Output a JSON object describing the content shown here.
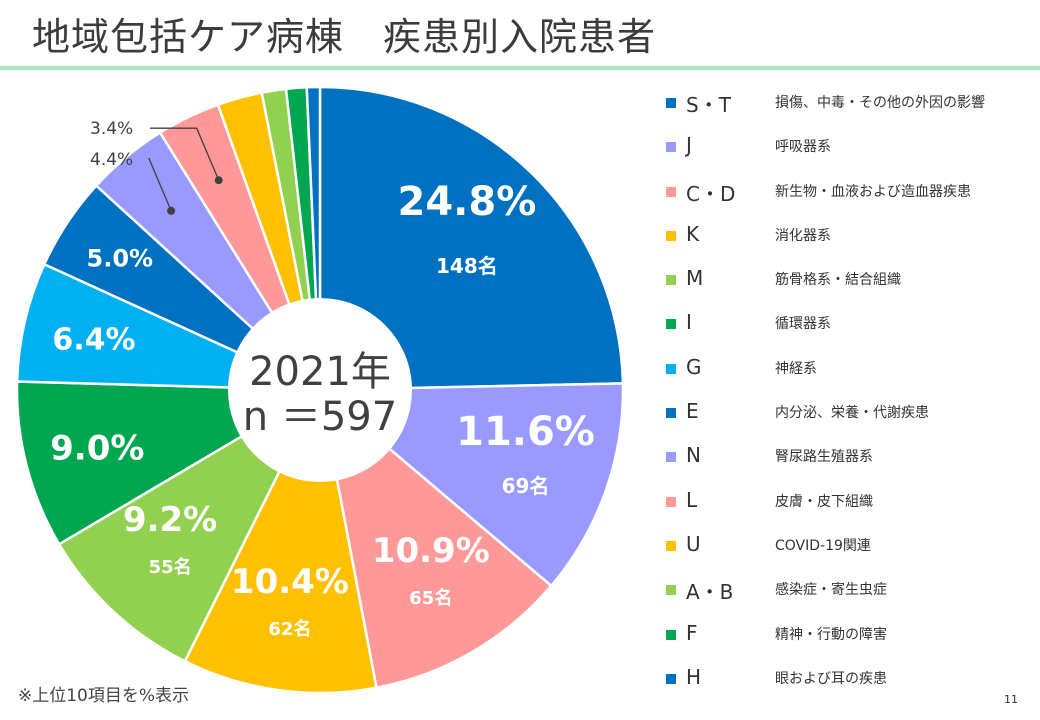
{
  "title": "地域包括ケア病棟　疾患別入院患者",
  "footnote": "※上位10項目を%表示",
  "page_number": "11",
  "center_label": {
    "line1": "2021年",
    "line2": "n ＝597"
  },
  "chart_data": {
    "type": "pie",
    "variant": "donut",
    "start": "12 o'clock, clockwise",
    "legend_position": "right",
    "total": 597,
    "slices": [
      {
        "code": "S・T",
        "label": "損傷、中毒・その他の外因の影響",
        "percent": 24.8,
        "count": 148,
        "percent_text": "24.8%",
        "count_text": "148名",
        "color": "#0070c0"
      },
      {
        "code": "J",
        "label": "呼吸器系",
        "percent": 11.6,
        "count": 69,
        "percent_text": "11.6%",
        "count_text": "69名",
        "color": "#9999ff"
      },
      {
        "code": "C・D",
        "label": "新生物・血液および造血器疾患",
        "percent": 10.9,
        "count": 65,
        "percent_text": "10.9%",
        "count_text": "65名",
        "color": "#ff9999"
      },
      {
        "code": "K",
        "label": "消化器系",
        "percent": 10.4,
        "count": 62,
        "percent_text": "10.4%",
        "count_text": "62名",
        "color": "#ffc000"
      },
      {
        "code": "M",
        "label": "筋骨格系・結合組織",
        "percent": 9.2,
        "count": 55,
        "percent_text": "9.2%",
        "count_text": "55名",
        "color": "#92d050"
      },
      {
        "code": "I",
        "label": "循環器系",
        "percent": 9.0,
        "percent_text": "9.0%",
        "color": "#00a650"
      },
      {
        "code": "G",
        "label": "神経系",
        "percent": 6.4,
        "percent_text": "6.4%",
        "color": "#00b0f0"
      },
      {
        "code": "E",
        "label": "内分泌、栄養・代謝疾患",
        "percent": 5.0,
        "percent_text": "5.0%",
        "color": "#0070c0"
      },
      {
        "code": "N",
        "label": "腎尿路生殖器系",
        "percent": 4.4,
        "percent_text": "4.4%",
        "color": "#9999ff"
      },
      {
        "code": "L",
        "label": "皮膚・皮下組織",
        "percent": 3.4,
        "percent_text": "3.4%",
        "color": "#ff9999"
      },
      {
        "code": "U",
        "label": "COVID-19関連",
        "percent": 2.4,
        "color": "#ffc000"
      },
      {
        "code": "A・B",
        "label": "感染症・寄生虫症",
        "percent": 1.3,
        "color": "#92d050"
      },
      {
        "code": "F",
        "label": "精神・行動の障害",
        "percent": 1.1,
        "color": "#00a650"
      },
      {
        "code": "H",
        "label": "眼および耳の疾患",
        "percent": 0.7,
        "color": "#0070c0"
      }
    ]
  }
}
